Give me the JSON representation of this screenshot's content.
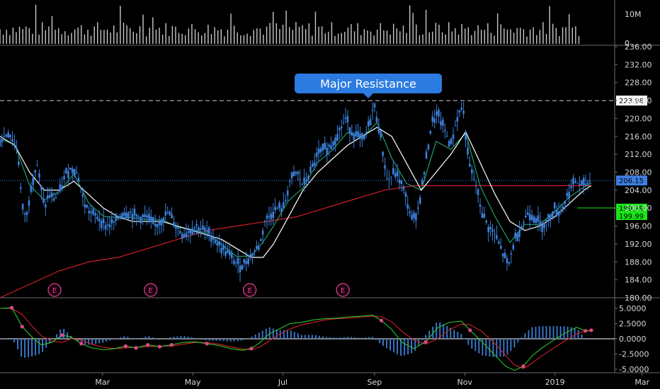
{
  "chart_data": [
    {
      "type": "bar",
      "panel": "volume",
      "y_ticks": [
        {
          "value": 10000000,
          "label": "10M"
        },
        {
          "value": 0,
          "label": "0"
        }
      ],
      "ylim": [
        0,
        14000000
      ],
      "color": "#c9c9c9"
    },
    {
      "type": "line",
      "panel": "price",
      "candle_color": "#3b7fd9",
      "xlim_days": [
        0,
        389
      ],
      "ylim": [
        180,
        236
      ],
      "y_ticks": [
        236,
        232,
        228,
        224,
        220,
        216,
        212,
        208,
        204,
        200,
        196,
        192,
        188,
        184,
        180
      ],
      "y_tick_labels": [
        "236.00",
        "232.00",
        "228.00",
        "224.00",
        "220.00",
        "216.00",
        "212.00",
        "208.00",
        "204.00",
        "200.00",
        "196.00",
        "192.00",
        "188.00",
        "184.00",
        "180.00"
      ],
      "x_ticks": [
        {
          "label": "Mar",
          "day": 55
        },
        {
          "label": "May",
          "day": 116
        },
        {
          "label": "Jul",
          "day": 177
        },
        {
          "label": "Sep",
          "day": 239
        },
        {
          "label": "Nov",
          "day": 300
        },
        {
          "label": "2019",
          "day": 361
        },
        {
          "label": "Mar",
          "day": 420
        }
      ],
      "close_path": [
        [
          0,
          215
        ],
        [
          6,
          217
        ],
        [
          12,
          213
        ],
        [
          15,
          200
        ],
        [
          18,
          198
        ],
        [
          21,
          205
        ],
        [
          25,
          210
        ],
        [
          30,
          200
        ],
        [
          33,
          203
        ],
        [
          37,
          202
        ],
        [
          41,
          204
        ],
        [
          45,
          208
        ],
        [
          50,
          209
        ],
        [
          53,
          207
        ],
        [
          57,
          201
        ],
        [
          61,
          199
        ],
        [
          66,
          198
        ],
        [
          72,
          196
        ],
        [
          78,
          197
        ],
        [
          83,
          199
        ],
        [
          88,
          199
        ],
        [
          93,
          198
        ],
        [
          99,
          198
        ],
        [
          105,
          196
        ],
        [
          108,
          197
        ],
        [
          114,
          199
        ],
        [
          119,
          196
        ],
        [
          124,
          194
        ],
        [
          128,
          195
        ],
        [
          133,
          196
        ],
        [
          138,
          195
        ],
        [
          143,
          194
        ],
        [
          150,
          191
        ],
        [
          154,
          190
        ],
        [
          159,
          188
        ],
        [
          163,
          187
        ],
        [
          166,
          188
        ],
        [
          171,
          190
        ],
        [
          176,
          192
        ],
        [
          179,
          197
        ],
        [
          184,
          199
        ],
        [
          188,
          200
        ],
        [
          192,
          200
        ],
        [
          196,
          206
        ],
        [
          201,
          208
        ],
        [
          205,
          205
        ],
        [
          210,
          208
        ],
        [
          215,
          212
        ],
        [
          219,
          213
        ],
        [
          224,
          214
        ],
        [
          229,
          217
        ],
        [
          234,
          220
        ],
        [
          238,
          217
        ],
        [
          242,
          216
        ],
        [
          246,
          215
        ],
        [
          250,
          219
        ],
        [
          253,
          223
        ],
        [
          257,
          217
        ],
        [
          262,
          206
        ],
        [
          267,
          208
        ],
        [
          271,
          206
        ],
        [
          274,
          203
        ],
        [
          279,
          197
        ],
        [
          283,
          200
        ],
        [
          287,
          208
        ],
        [
          292,
          219
        ],
        [
          296,
          221
        ],
        [
          300,
          218
        ],
        [
          305,
          214
        ],
        [
          309,
          220
        ],
        [
          313,
          223
        ],
        [
          317,
          210
        ],
        [
          322,
          205
        ],
        [
          326,
          199
        ],
        [
          330,
          196
        ],
        [
          335,
          194
        ],
        [
          340,
          190
        ],
        [
          344,
          187
        ],
        [
          348,
          193
        ],
        [
          353,
          196
        ],
        [
          357,
          199
        ],
        [
          362,
          198
        ],
        [
          366,
          196
        ],
        [
          370,
          197
        ],
        [
          375,
          200
        ],
        [
          379,
          199
        ],
        [
          384,
          203
        ],
        [
          389,
          206
        ],
        [
          394,
          205
        ],
        [
          399,
          206
        ]
      ],
      "sma_fast": [
        [
          0,
          216
        ],
        [
          10,
          214
        ],
        [
          20,
          208
        ],
        [
          30,
          204
        ],
        [
          40,
          204
        ],
        [
          50,
          206
        ],
        [
          60,
          203
        ],
        [
          70,
          200
        ],
        [
          80,
          198
        ],
        [
          90,
          197
        ],
        [
          100,
          197
        ],
        [
          110,
          197
        ],
        [
          120,
          196
        ],
        [
          130,
          195
        ],
        [
          140,
          194
        ],
        [
          150,
          193
        ],
        [
          160,
          191
        ],
        [
          170,
          189
        ],
        [
          178,
          189
        ],
        [
          185,
          192
        ],
        [
          195,
          198
        ],
        [
          205,
          204
        ],
        [
          215,
          208
        ],
        [
          225,
          211
        ],
        [
          235,
          214
        ],
        [
          245,
          216
        ],
        [
          255,
          218
        ],
        [
          265,
          216
        ],
        [
          275,
          210
        ],
        [
          285,
          204
        ],
        [
          295,
          208
        ],
        [
          305,
          212
        ],
        [
          315,
          217
        ],
        [
          325,
          210
        ],
        [
          335,
          203
        ],
        [
          345,
          197
        ],
        [
          355,
          195
        ],
        [
          365,
          196
        ],
        [
          375,
          198
        ],
        [
          385,
          201
        ],
        [
          395,
          204
        ],
        [
          400,
          205
        ]
      ],
      "sma_slow": [
        [
          0,
          180
        ],
        [
          20,
          183
        ],
        [
          40,
          186
        ],
        [
          60,
          188
        ],
        [
          80,
          189
        ],
        [
          100,
          191
        ],
        [
          120,
          193
        ],
        [
          140,
          195
        ],
        [
          160,
          196
        ],
        [
          180,
          197
        ],
        [
          200,
          198
        ],
        [
          220,
          200
        ],
        [
          240,
          202
        ],
        [
          260,
          204
        ],
        [
          280,
          205
        ],
        [
          300,
          205
        ],
        [
          320,
          205
        ],
        [
          340,
          205
        ],
        [
          360,
          205
        ],
        [
          380,
          205
        ],
        [
          400,
          205
        ]
      ],
      "sma_fast_color": "#ffffff",
      "sma_mid_color": "#1d9e6e",
      "sma_slow_color": "#d0202a",
      "horizontal_lines": [
        {
          "value": 223.98,
          "label": "223.98",
          "style": "dashed",
          "color": "#c8c8c8"
        },
        {
          "value": 206.15,
          "label": "206.15",
          "style": "dotted",
          "color": "#3d7fe0"
        }
      ],
      "price_tags": [
        {
          "value": 199.99,
          "label": "199.99",
          "color": "#19e619"
        },
        {
          "value": 199.99,
          "label": "199.99",
          "color": "#19e619"
        }
      ],
      "annotation": {
        "text": "Major Resistance",
        "day": 245,
        "color": "#2c7be0"
      },
      "earnings_markers": [
        {
          "label": "E",
          "day": 35
        },
        {
          "label": "E",
          "day": 100
        },
        {
          "label": "E",
          "day": 167
        },
        {
          "label": "E",
          "day": 230
        }
      ]
    },
    {
      "type": "line",
      "panel": "macd",
      "ylim": [
        -6,
        7
      ],
      "y_ticks": [
        5.0,
        2.5,
        0.0,
        -2.5,
        -5.0
      ],
      "y_tick_labels": [
        "5.0000",
        "2.5000",
        "0.0000",
        "-2.5000",
        "-5.0000"
      ],
      "macd_color": "#2fc52f",
      "signal_color": "#d0202a",
      "histogram_color": "#3b7fd9",
      "macd_path": [
        [
          0,
          5.0
        ],
        [
          8,
          5.1
        ],
        [
          15,
          2.0
        ],
        [
          22,
          0.2
        ],
        [
          28,
          -1.0
        ],
        [
          35,
          -0.6
        ],
        [
          42,
          0.6
        ],
        [
          48,
          0.3
        ],
        [
          55,
          -0.8
        ],
        [
          62,
          -1.5
        ],
        [
          70,
          -1.8
        ],
        [
          78,
          -1.6
        ],
        [
          85,
          -1.2
        ],
        [
          92,
          -1.5
        ],
        [
          100,
          -1.0
        ],
        [
          108,
          -1.3
        ],
        [
          116,
          -1.0
        ],
        [
          124,
          -0.6
        ],
        [
          132,
          -0.5
        ],
        [
          140,
          -0.8
        ],
        [
          148,
          -1.1
        ],
        [
          156,
          -1.6
        ],
        [
          164,
          -1.9
        ],
        [
          170,
          -1.6
        ],
        [
          176,
          -0.6
        ],
        [
          182,
          0.8
        ],
        [
          188,
          1.5
        ],
        [
          196,
          2.5
        ],
        [
          204,
          2.7
        ],
        [
          212,
          3.1
        ],
        [
          220,
          3.3
        ],
        [
          228,
          3.4
        ],
        [
          236,
          3.6
        ],
        [
          244,
          3.7
        ],
        [
          252,
          3.9
        ],
        [
          258,
          3.0
        ],
        [
          265,
          1.5
        ],
        [
          272,
          -0.6
        ],
        [
          280,
          -1.6
        ],
        [
          288,
          -0.5
        ],
        [
          296,
          1.8
        ],
        [
          304,
          2.7
        ],
        [
          312,
          2.9
        ],
        [
          318,
          1.4
        ],
        [
          326,
          -0.5
        ],
        [
          334,
          -2.5
        ],
        [
          342,
          -4.5
        ],
        [
          348,
          -5.2
        ],
        [
          354,
          -4.5
        ],
        [
          360,
          -2.8
        ],
        [
          366,
          -1.6
        ],
        [
          374,
          -0.3
        ],
        [
          382,
          0.9
        ],
        [
          390,
          1.9
        ],
        [
          396,
          1.3
        ],
        [
          400,
          1.4
        ]
      ],
      "signal_path": [
        [
          0,
          5.0
        ],
        [
          8,
          5.0
        ],
        [
          15,
          4.0
        ],
        [
          22,
          2.0
        ],
        [
          28,
          0.5
        ],
        [
          35,
          -0.4
        ],
        [
          42,
          -0.6
        ],
        [
          48,
          0.0
        ],
        [
          55,
          -0.2
        ],
        [
          62,
          -0.9
        ],
        [
          70,
          -1.4
        ],
        [
          78,
          -1.6
        ],
        [
          85,
          -1.5
        ],
        [
          92,
          -1.4
        ],
        [
          100,
          -1.3
        ],
        [
          108,
          -1.2
        ],
        [
          116,
          -1.2
        ],
        [
          124,
          -0.9
        ],
        [
          132,
          -0.6
        ],
        [
          140,
          -0.6
        ],
        [
          148,
          -0.9
        ],
        [
          156,
          -1.3
        ],
        [
          164,
          -1.7
        ],
        [
          170,
          -1.8
        ],
        [
          176,
          -1.3
        ],
        [
          182,
          -0.4
        ],
        [
          188,
          0.6
        ],
        [
          196,
          1.6
        ],
        [
          204,
          2.3
        ],
        [
          212,
          2.7
        ],
        [
          220,
          3.1
        ],
        [
          228,
          3.3
        ],
        [
          236,
          3.4
        ],
        [
          244,
          3.6
        ],
        [
          252,
          3.7
        ],
        [
          258,
          3.6
        ],
        [
          265,
          2.8
        ],
        [
          272,
          1.2
        ],
        [
          280,
          -0.2
        ],
        [
          288,
          -0.9
        ],
        [
          296,
          0.0
        ],
        [
          304,
          1.5
        ],
        [
          312,
          2.4
        ],
        [
          318,
          2.3
        ],
        [
          326,
          1.2
        ],
        [
          334,
          -0.6
        ],
        [
          342,
          -2.7
        ],
        [
          348,
          -4.3
        ],
        [
          354,
          -4.9
        ],
        [
          360,
          -4.0
        ],
        [
          366,
          -2.9
        ],
        [
          374,
          -1.6
        ],
        [
          382,
          -0.4
        ],
        [
          390,
          0.8
        ],
        [
          396,
          1.3
        ],
        [
          400,
          1.3
        ]
      ]
    }
  ]
}
